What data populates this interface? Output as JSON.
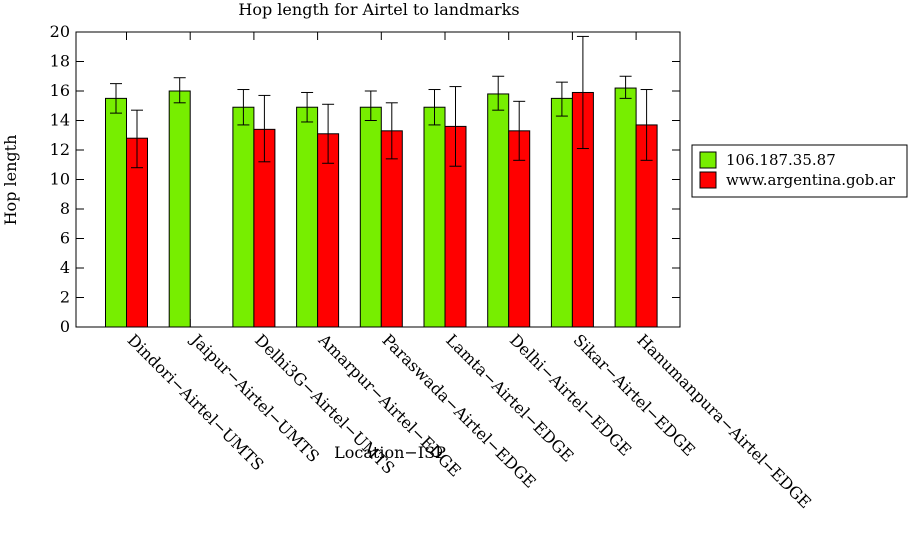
{
  "chart_data": {
    "type": "bar",
    "title": "Hop length for Airtel to landmarks",
    "xlabel": "Location−ISP",
    "ylabel": "Hop length",
    "ylim": [
      0,
      20
    ],
    "yticks": [
      0,
      2,
      4,
      6,
      8,
      10,
      12,
      14,
      16,
      18,
      20
    ],
    "grid": false,
    "legend_position": "right",
    "categories": [
      "Dindori−Airtel−UMTS",
      "Jaipur−Airtel−UMTS",
      "Delhi3G−Airtel−UMTS",
      "Amarpur−Airtel−EDGE",
      "Paraswada−Airtel−EDGE",
      "Lamta−Airtel−EDGE",
      "Delhi−Airtel−EDGE",
      "Sikar−Airtel−EDGE",
      "Hanumanpura−Airtel−EDGE"
    ],
    "series": [
      {
        "name": "106.187.35.87",
        "color": "#77ee00",
        "values": [
          15.5,
          16.0,
          14.9,
          14.9,
          14.9,
          14.9,
          15.8,
          15.5,
          16.2
        ],
        "err_low": [
          14.5,
          15.2,
          13.7,
          13.9,
          14.0,
          13.7,
          14.7,
          14.3,
          15.5
        ],
        "err_high": [
          16.5,
          16.9,
          16.1,
          15.9,
          16.0,
          16.1,
          17.0,
          16.6,
          17.0
        ]
      },
      {
        "name": "www.argentina.gob.ar",
        "color": "#ff0000",
        "values": [
          12.8,
          null,
          13.4,
          13.1,
          13.3,
          13.6,
          13.3,
          15.9,
          13.7
        ],
        "err_low": [
          10.8,
          null,
          11.2,
          11.1,
          11.4,
          10.9,
          11.3,
          12.1,
          11.3
        ],
        "err_high": [
          14.7,
          null,
          15.7,
          15.1,
          15.2,
          16.3,
          15.3,
          19.7,
          16.1
        ]
      }
    ]
  }
}
